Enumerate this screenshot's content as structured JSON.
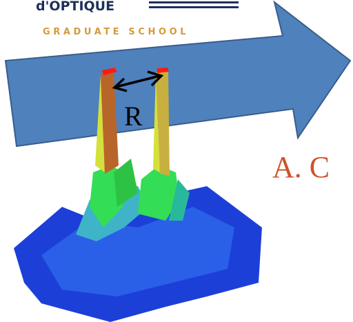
{
  "logo": {
    "name": "d'OPTIQUE",
    "subtitle": "GRADUATE SCHOOL"
  },
  "figure": {
    "label": "R"
  },
  "heading": {
    "text": "A. C"
  }
}
